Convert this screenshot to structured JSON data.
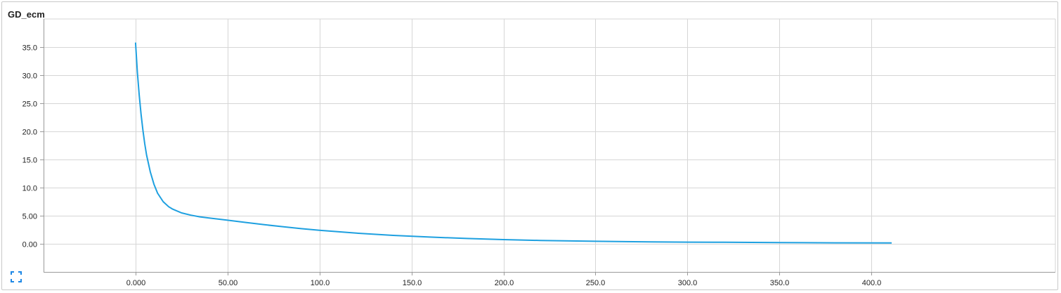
{
  "card": {
    "title": "GD_ecm"
  },
  "icons": {
    "expand": "fullscreen-expand-icon"
  },
  "colors": {
    "line": "#1ea0e0",
    "grid": "#d6d6d6",
    "axis": "#9a9a9a"
  },
  "chart_data": {
    "type": "line",
    "title": "GD_ecm",
    "xlabel": "",
    "ylabel": "",
    "xlim": [
      -50,
      500
    ],
    "ylim": [
      -5,
      40
    ],
    "grid": true,
    "x_ticks": [
      0,
      50,
      100,
      150,
      200,
      250,
      300,
      350,
      400
    ],
    "x_tick_labels": [
      "0.000",
      "50.00",
      "100.0",
      "150.0",
      "200.0",
      "250.0",
      "300.0",
      "350.0",
      "400.0"
    ],
    "y_ticks": [
      0,
      5,
      10,
      15,
      20,
      25,
      30,
      35
    ],
    "y_tick_labels": [
      "0.00",
      "5.00",
      "10.0",
      "15.0",
      "20.0",
      "25.0",
      "30.0",
      "35.0"
    ],
    "series": [
      {
        "x": [
          0,
          1,
          2,
          3,
          4,
          5,
          6,
          8,
          10,
          12,
          15,
          18,
          20,
          25,
          30,
          35,
          40,
          50,
          60,
          70,
          80,
          90,
          100,
          120,
          140,
          160,
          180,
          200,
          220,
          250,
          280,
          300,
          320,
          350,
          380,
          411
        ],
        "y": [
          35.8,
          30.5,
          26.5,
          23.0,
          20.2,
          17.8,
          15.8,
          12.8,
          10.6,
          9.0,
          7.5,
          6.6,
          6.2,
          5.5,
          5.1,
          4.8,
          4.6,
          4.2,
          3.8,
          3.4,
          3.05,
          2.7,
          2.4,
          1.9,
          1.5,
          1.2,
          0.95,
          0.75,
          0.6,
          0.45,
          0.35,
          0.3,
          0.27,
          0.22,
          0.18,
          0.15
        ]
      }
    ]
  }
}
